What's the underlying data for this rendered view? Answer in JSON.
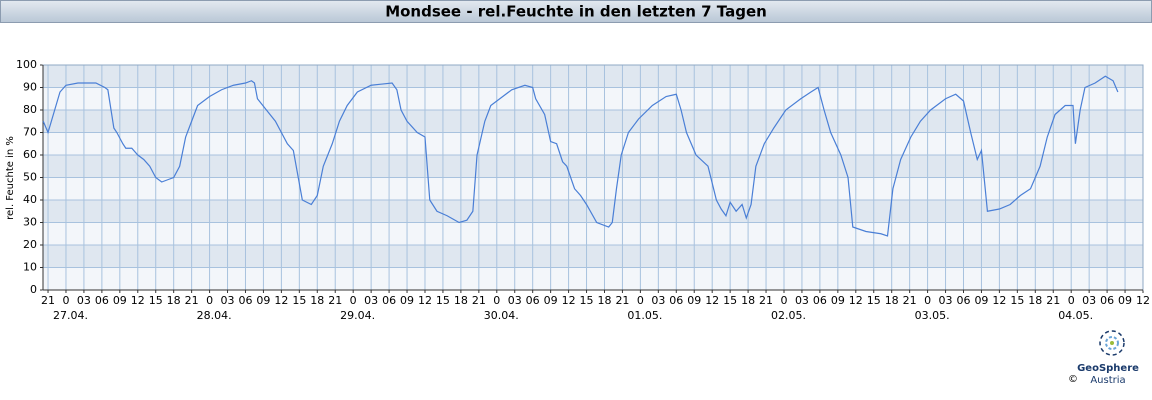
{
  "chart_data": {
    "type": "line",
    "title": "Mondsee - rel.Feuchte in den letzten 7 Tagen",
    "y_label": "rel. Feuchte in %",
    "color": "#4a7fd6",
    "grid": true,
    "x": [
      -3.8,
      -3,
      -1,
      0,
      2,
      5,
      6.5,
      7,
      8,
      8.5,
      9.5,
      10,
      11,
      12,
      13,
      14,
      15,
      16,
      17,
      18,
      19,
      20,
      21,
      22,
      24,
      26,
      28,
      30,
      31,
      31.5,
      32,
      33.5,
      35,
      36,
      37,
      38,
      39.5,
      41,
      42,
      43,
      44.5,
      45.7,
      47,
      48.7,
      51,
      54.5,
      55.3,
      56,
      57,
      58.7,
      60,
      60.8,
      62,
      63.7,
      65.7,
      67,
      68,
      68.7,
      70,
      71,
      73,
      74.5,
      76.7,
      78,
      78.5,
      80,
      81,
      82,
      83,
      83.7,
      85,
      86,
      87,
      88.7,
      90.7,
      91.3,
      92,
      92.8,
      94,
      95.7,
      98,
      100.3,
      102,
      102.8,
      103.7,
      105.3,
      107.3,
      108.7,
      109.5,
      110.3,
      111,
      112,
      113,
      113.7,
      114.5,
      115.3,
      116.7,
      118.3,
      120.3,
      122.8,
      124.5,
      125.7,
      126.7,
      127.8,
      129.5,
      130.7,
      131.5,
      133.7,
      136.2,
      137.3,
      138.2,
      139.5,
      141.2,
      142.8,
      144.5,
      147,
      148.7,
      150,
      151.2,
      152.3,
      153,
      154,
      156,
      157.8,
      159.5,
      161.2,
      162.8,
      164,
      165.3,
      167,
      168.3,
      168.7,
      169.5,
      170.3,
      172,
      173.7,
      175,
      175.8
    ],
    "values": [
      75,
      70,
      88,
      91,
      92,
      92,
      90,
      89,
      72,
      70,
      65,
      63,
      63,
      60,
      58,
      55,
      50,
      48,
      49,
      50,
      55,
      68,
      75,
      82,
      86,
      89,
      91,
      92,
      93,
      92,
      85,
      80,
      75,
      70,
      65,
      62,
      40,
      38,
      42,
      55,
      65,
      75,
      82,
      88,
      91,
      92,
      89,
      80,
      75,
      70,
      68,
      40,
      35,
      33,
      30,
      31,
      35,
      60,
      75,
      82,
      86,
      89,
      91,
      90,
      85,
      78,
      66,
      65,
      57,
      55,
      45,
      42,
      38,
      30,
      28,
      30,
      45,
      60,
      70,
      76,
      82,
      86,
      87,
      80,
      70,
      60,
      55,
      40,
      36,
      33,
      39,
      35,
      38,
      32,
      38,
      55,
      65,
      72,
      80,
      85,
      88,
      90,
      80,
      70,
      60,
      50,
      28,
      26,
      25,
      24,
      45,
      58,
      68,
      75,
      80,
      85,
      87,
      84,
      70,
      58,
      62,
      35,
      36,
      38,
      42,
      45,
      55,
      68,
      78,
      82,
      82,
      65,
      80,
      90,
      92,
      95,
      93,
      88
    ],
    "xlim": [
      -3.84,
      180
    ],
    "ylim": [
      0,
      100
    ],
    "yticks": [
      0,
      10,
      20,
      30,
      40,
      50,
      60,
      70,
      80,
      90,
      100
    ],
    "xticks": [
      {
        "value": -3,
        "label": "21"
      },
      0,
      {
        "value": 3,
        "label": "03"
      },
      {
        "value": 6,
        "label": "06"
      },
      {
        "value": 9,
        "label": "09"
      },
      12,
      15,
      18,
      21,
      {
        "value": 24,
        "label": "0"
      },
      {
        "value": 27,
        "label": "03"
      },
      {
        "value": 30,
        "label": "06"
      },
      {
        "value": 33,
        "label": "09"
      },
      {
        "value": 36,
        "label": "12"
      },
      {
        "value": 39,
        "label": "15"
      },
      {
        "value": 42,
        "label": "18"
      },
      {
        "value": 45,
        "label": "21"
      },
      {
        "value": 48,
        "label": "0"
      },
      {
        "value": 51,
        "label": "03"
      },
      {
        "value": 54,
        "label": "06"
      },
      {
        "value": 57,
        "label": "09"
      },
      {
        "value": 60,
        "label": "12"
      },
      {
        "value": 63,
        "label": "15"
      },
      {
        "value": 66,
        "label": "18"
      },
      {
        "value": 69,
        "label": "21"
      },
      {
        "value": 72,
        "label": "0"
      },
      {
        "value": 75,
        "label": "03"
      },
      {
        "value": 78,
        "label": "06"
      },
      {
        "value": 81,
        "label": "09"
      },
      {
        "value": 84,
        "label": "12"
      },
      {
        "value": 87,
        "label": "15"
      },
      {
        "value": 90,
        "label": "18"
      },
      {
        "value": 93,
        "label": "21"
      },
      {
        "value": 96,
        "label": "0"
      },
      {
        "value": 99,
        "label": "03"
      },
      {
        "value": 102,
        "label": "06"
      },
      {
        "value": 105,
        "label": "09"
      },
      {
        "value": 108,
        "label": "12"
      },
      {
        "value": 111,
        "label": "15"
      },
      {
        "value": 114,
        "label": "18"
      },
      {
        "value": 117,
        "label": "21"
      },
      {
        "value": 120,
        "label": "0"
      },
      {
        "value": 123,
        "label": "03"
      },
      {
        "value": 126,
        "label": "06"
      },
      {
        "value": 129,
        "label": "09"
      },
      {
        "value": 132,
        "label": "12"
      },
      {
        "value": 135,
        "label": "15"
      },
      {
        "value": 138,
        "label": "18"
      },
      {
        "value": 141,
        "label": "21"
      },
      {
        "value": 144,
        "label": "0"
      },
      {
        "value": 147,
        "label": "03"
      },
      {
        "value": 150,
        "label": "06"
      },
      {
        "value": 153,
        "label": "09"
      },
      {
        "value": 156,
        "label": "12"
      },
      {
        "value": 159,
        "label": "15"
      },
      {
        "value": 162,
        "label": "18"
      },
      {
        "value": 165,
        "label": "21"
      },
      {
        "value": 168,
        "label": "0"
      },
      {
        "value": 171,
        "label": "03"
      },
      {
        "value": 174,
        "label": "06"
      },
      {
        "value": 177,
        "label": "09"
      },
      {
        "value": 180,
        "label": "12"
      }
    ],
    "date_labels": [
      {
        "value": 0,
        "label": "27.04."
      },
      {
        "value": 24,
        "label": "28.04."
      },
      {
        "value": 48,
        "label": "29.04."
      },
      {
        "value": 72,
        "label": "30.04."
      },
      {
        "value": 96,
        "label": "01.05."
      },
      {
        "value": 120,
        "label": "02.05."
      },
      {
        "value": 144,
        "label": "03.05."
      },
      {
        "value": 168,
        "label": "04.05."
      }
    ]
  },
  "logo": {
    "name": "GeoSphere",
    "sub": "Austria",
    "copyright": "©"
  }
}
